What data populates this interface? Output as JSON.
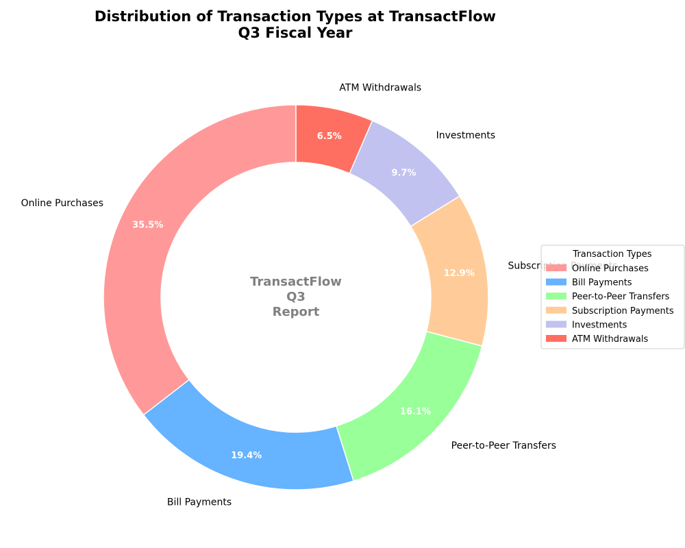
{
  "chart_data": {
    "type": "pie",
    "style": "donut",
    "title_lines": [
      "Distribution of Transaction Types at TransactFlow",
      "Q3 Fiscal Year"
    ],
    "center_text_lines": [
      "TransactFlow",
      "Q3",
      "Report"
    ],
    "legend": {
      "title": "Transaction Types",
      "placement": "right"
    },
    "start_angle": 90,
    "direction": "counterclockwise",
    "slices": [
      {
        "label": "Online Purchases",
        "value": 35.5,
        "pct_label": "35.5%",
        "color": "#FF9999"
      },
      {
        "label": "Bill Payments",
        "value": 19.4,
        "pct_label": "19.4%",
        "color": "#66B3FF"
      },
      {
        "label": "Peer-to-Peer Transfers",
        "value": 16.1,
        "pct_label": "16.1%",
        "color": "#99FF99"
      },
      {
        "label": "Subscription Payments",
        "value": 12.9,
        "pct_label": "12.9%",
        "color": "#FFCC99"
      },
      {
        "label": "Investments",
        "value": 9.7,
        "pct_label": "9.7%",
        "color": "#C2C2F0"
      },
      {
        "label": "ATM Withdrawals",
        "value": 6.5,
        "pct_label": "6.5%",
        "color": "#FF6F61"
      }
    ]
  }
}
